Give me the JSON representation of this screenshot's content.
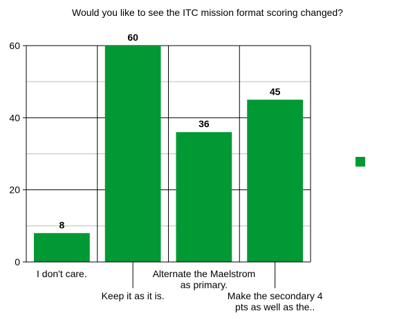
{
  "chart_data": {
    "type": "bar",
    "title": "Would you like to see the ITC mission format scoring changed?",
    "categories": [
      "I don't care.",
      "Keep it as it is.",
      "Alternate the Maelstrom as primary.",
      "Make the secondary 4 pts as well as the.."
    ],
    "category_label_lines": [
      [
        "I don't care."
      ],
      [
        "Keep it as it is."
      ],
      [
        "Alternate the Maelstrom",
        "as primary."
      ],
      [
        "Make the secondary 4",
        "pts as well as the.."
      ]
    ],
    "values": [
      8,
      60,
      36,
      45
    ],
    "data_labels": [
      "8",
      "60",
      "36",
      "45"
    ],
    "y_ticks": [
      "0",
      "20",
      "40",
      "60"
    ],
    "ylim": [
      0,
      60
    ],
    "xlabel": "",
    "ylabel": "",
    "grid": true,
    "legend": "right",
    "colors": {
      "bar": "#009933",
      "grid_minor": "#bbbbbb",
      "grid_major": "#000000"
    }
  }
}
